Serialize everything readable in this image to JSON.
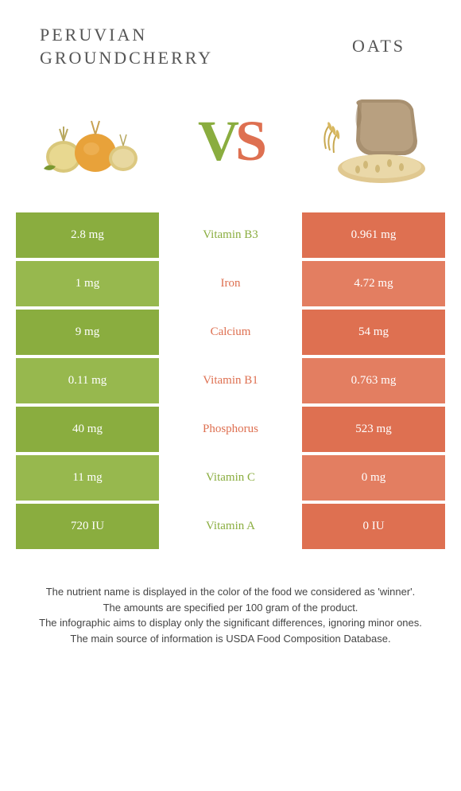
{
  "foods": {
    "left": {
      "name": "PERUVIAN\nGROUNDCHERRY",
      "color": "#8aad3f"
    },
    "right": {
      "name": "OATS",
      "color": "#de7051"
    }
  },
  "vs": {
    "v": "V",
    "s": "S"
  },
  "rows": [
    {
      "nutrient": "Vitamin B3",
      "left": "2.8 mg",
      "right": "0.961 mg",
      "winner": "left"
    },
    {
      "nutrient": "Iron",
      "left": "1 mg",
      "right": "4.72 mg",
      "winner": "right"
    },
    {
      "nutrient": "Calcium",
      "left": "9 mg",
      "right": "54 mg",
      "winner": "right"
    },
    {
      "nutrient": "Vitamin B1",
      "left": "0.11 mg",
      "right": "0.763 mg",
      "winner": "right"
    },
    {
      "nutrient": "Phosphorus",
      "left": "40 mg",
      "right": "523 mg",
      "winner": "right"
    },
    {
      "nutrient": "Vitamin C",
      "left": "11 mg",
      "right": "0 mg",
      "winner": "left"
    },
    {
      "nutrient": "Vitamin A",
      "left": "720 IU",
      "right": "0 IU",
      "winner": "left"
    }
  ],
  "colors": {
    "left_bg": "#8aad3f",
    "left_bg_alt": "#97b84e",
    "right_bg": "#de7051",
    "right_bg_alt": "#e37e61",
    "mid_left": "#8aad3f",
    "mid_right": "#de7051"
  },
  "footer": [
    "The nutrient name is displayed in the color of the food we considered as 'winner'.",
    "The amounts are specified per 100 gram of the product.",
    "The infographic aims to display only the significant differences, ignoring minor ones.",
    "The main source of information is USDA Food Composition Database."
  ]
}
